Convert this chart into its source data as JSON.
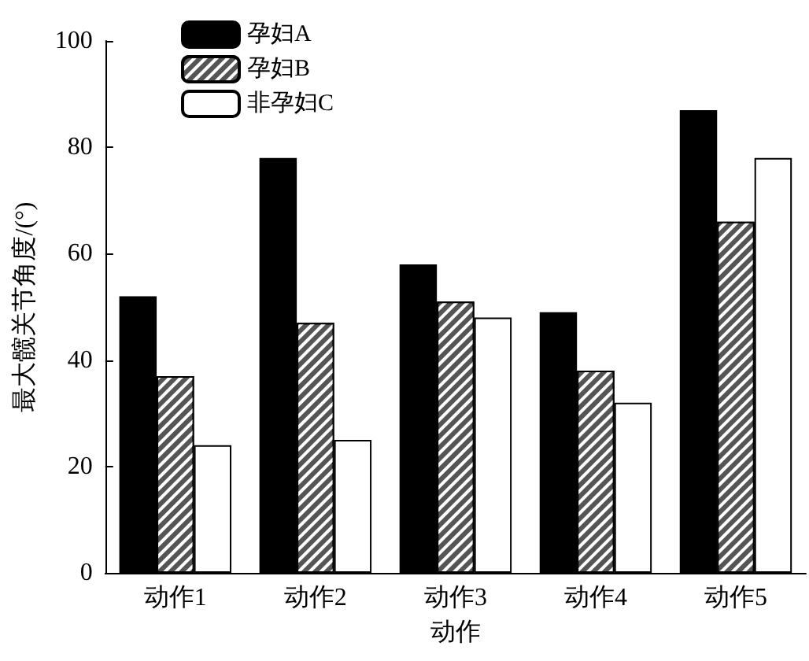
{
  "chart_data": {
    "type": "bar",
    "xlabel": "动作",
    "ylabel": "最大髋关节角度/(°)",
    "categories": [
      "动作1",
      "动作2",
      "动作3",
      "动作4",
      "动作5"
    ],
    "series": [
      {
        "name": "孕妇A",
        "color": "#000000",
        "values": [
          52,
          78,
          58,
          49,
          87
        ]
      },
      {
        "name": "孕妇B",
        "color": "#555555",
        "values": [
          37,
          47,
          51,
          38,
          66
        ]
      },
      {
        "name": "非孕妇C",
        "color": "#ffffff",
        "values": [
          24,
          25,
          48,
          32,
          78
        ]
      }
    ],
    "ylim": [
      0,
      100
    ],
    "yticks": [
      0,
      20,
      40,
      60,
      80,
      100
    ],
    "grid": false,
    "legend": "top left"
  }
}
